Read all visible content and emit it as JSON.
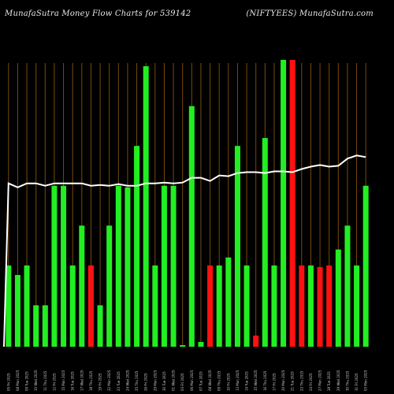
{
  "chart_data": {
    "type": "bar",
    "title_left": "MunafaSutra  Money Flow  Charts for 539142",
    "title_right": "(NIFTYEES) MunafaSutra.com",
    "ylim": [
      0,
      356
    ],
    "colors": {
      "up": "#22ee22",
      "down": "#ff1111",
      "line": "#ffffff",
      "grid": "#7a4a10"
    },
    "categories": [
      "2025-09-05",
      "2025-09-08",
      "2025-09-09",
      "2025-09-10",
      "2025-09-11",
      "2025-09-12",
      "2025-09-15",
      "2025-09-16",
      "2025-09-17",
      "2025-09-18",
      "2025-09-19",
      "2025-09-22",
      "2025-09-23",
      "2025-09-24",
      "2025-09-25",
      "2025-09-26",
      "2025-09-29",
      "2025-09-30",
      "2025-10-01",
      "2025-10-03",
      "2025-10-06",
      "2025-10-07",
      "2025-10-08",
      "2025-10-09",
      "2025-10-10",
      "2025-10-13",
      "2025-10-14",
      "2025-10-15",
      "2025-10-16",
      "2025-10-17",
      "2025-10-20",
      "2025-10-21",
      "2025-10-23",
      "2025-10-24",
      "2025-10-27",
      "2025-10-28",
      "2025-10-29",
      "2025-10-30",
      "2025-10-31",
      "2025-11-03"
    ],
    "x_tick_labels": [
      "05 Fri 2025",
      "08 Mon 2025",
      "09 Tue 2025",
      "10 Wed 2025",
      "11 Thu 2025",
      "12 Fri 2025",
      "15 Mon 2025",
      "16 Tue 2025",
      "17 Wed 2025",
      "18 Thu 2025",
      "19 Fri 2025",
      "22 Mon 2025",
      "23 Tue 2025",
      "24 Wed 2025",
      "25 Thu 2025",
      "26 Fri 2025",
      "29 Mon 2025",
      "30 Tue 2025",
      "01 Wed 2025",
      "03 Fri 2025",
      "06 Mon 2025",
      "07 Tue 2025",
      "08 Wed 2025",
      "09 Thu 2025",
      "10 Fri 2025",
      "13 Mon 2025",
      "14 Tue 2025",
      "15 Wed 2025",
      "16 Thu 2025",
      "17 Fri 2025",
      "20 Mon 2025",
      "21 Tue 2025",
      "23 Thu 2025",
      "24 Fri 2025",
      "27 Mon 2025",
      "28 Tue 2025",
      "29 Wed 2025",
      "30 Thu 2025",
      "31 Fri 2025",
      "03 Mon 2025"
    ],
    "values": [
      102,
      90,
      102,
      52,
      52,
      202,
      202,
      102,
      152,
      102,
      52,
      152,
      202,
      200,
      252,
      352,
      102,
      202,
      202,
      2,
      302,
      6,
      102,
      102,
      112,
      252,
      102,
      14,
      262,
      102,
      360,
      360,
      102,
      102,
      100,
      102,
      122,
      152,
      102,
      202
    ],
    "directions": [
      "up",
      "up",
      "up",
      "up",
      "up",
      "up",
      "up",
      "up",
      "up",
      "down",
      "up",
      "up",
      "up",
      "up",
      "up",
      "up",
      "up",
      "up",
      "up",
      "up",
      "up",
      "up",
      "down",
      "up",
      "up",
      "up",
      "up",
      "down",
      "up",
      "up",
      "up",
      "down",
      "down",
      "up",
      "down",
      "down",
      "up",
      "up",
      "up",
      "up"
    ],
    "line_values": [
      205,
      200,
      205,
      205,
      202,
      205,
      205,
      205,
      205,
      202,
      203,
      202,
      204,
      202,
      202,
      205,
      205,
      206,
      205,
      206,
      212,
      212,
      208,
      215,
      214,
      218,
      219,
      219,
      218,
      220,
      220,
      219,
      223,
      226,
      228,
      226,
      227,
      236,
      240,
      238
    ]
  }
}
